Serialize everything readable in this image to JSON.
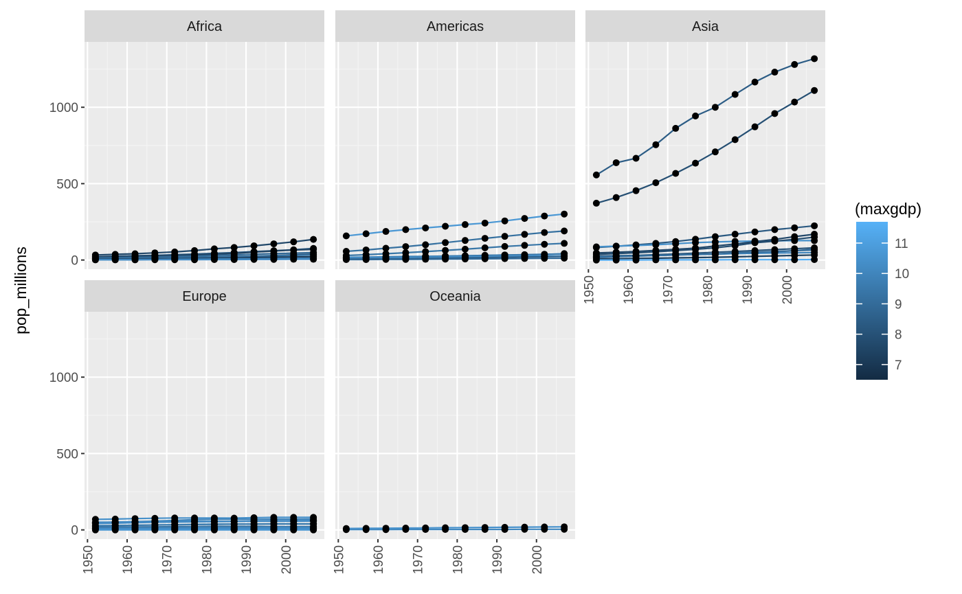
{
  "chart_data": {
    "type": "line",
    "ylabel": "pop_millions",
    "ylim": [
      0,
      1318
    ],
    "xlim": [
      1952,
      2007
    ],
    "x_ticks": [
      1950,
      1960,
      1970,
      1980,
      1990,
      2000
    ],
    "y_ticks": [
      0,
      500,
      1000
    ],
    "x": [
      1952,
      1957,
      1962,
      1967,
      1972,
      1977,
      1982,
      1987,
      1992,
      1997,
      2002,
      2007
    ],
    "legend": {
      "title": "(maxgdp)",
      "placement": "right",
      "ticks": [
        7,
        8,
        9,
        10,
        11
      ],
      "range": [
        6.5,
        11.7
      ],
      "low_color": "#132b43",
      "high_color": "#56b1f7"
    },
    "facets": [
      {
        "label": "Africa",
        "series": [
          {
            "maxgdp": 7.6,
            "values": [
              33,
              37,
              41,
              47,
              53,
              62,
              73,
              82,
              93,
              106,
              119,
              135
            ]
          },
          {
            "maxgdp": 8.4,
            "values": [
              22,
              25,
              28,
              31,
              35,
              39,
              44,
              49,
              55,
              61,
              67,
              76
            ]
          },
          {
            "maxgdp": 7.4,
            "values": [
              20,
              22,
              24,
              27,
              30,
              34,
              38,
              44,
              52,
              59,
              66,
              70
            ]
          },
          {
            "maxgdp": 8.9,
            "values": [
              14,
              16,
              18,
              20,
              23,
              26,
              30,
              34,
              38,
              42,
              45,
              49
            ]
          },
          {
            "maxgdp": 8.2,
            "values": [
              9,
              10,
              12,
              13,
              15,
              17,
              20,
              23,
              26,
              30,
              34,
              39
            ]
          },
          {
            "maxgdp": 9.4,
            "values": [
              8,
              9,
              11,
              12,
              14,
              16,
              18,
              21,
              24,
              27,
              30,
              33
            ]
          },
          {
            "maxgdp": 7.1,
            "values": [
              5,
              6,
              7,
              8,
              9,
              10,
              12,
              14,
              16,
              18,
              20,
              22
            ]
          },
          {
            "maxgdp": 9.8,
            "values": [
              3,
              3,
              4,
              4,
              5,
              6,
              7,
              8,
              9,
              10,
              11,
              12
            ]
          },
          {
            "maxgdp": 10.2,
            "values": [
              1,
              1,
              1,
              2,
              2,
              2,
              3,
              3,
              4,
              4,
              5,
              5
            ]
          }
        ]
      },
      {
        "label": "Americas",
        "series": [
          {
            "maxgdp": 10.7,
            "values": [
              158,
              172,
              187,
              199,
              210,
              221,
              232,
              242,
              256,
              272,
              288,
              301
            ]
          },
          {
            "maxgdp": 9.2,
            "values": [
              57,
              66,
              77,
              88,
              100,
              114,
              128,
              142,
              155,
              168,
              180,
              190
            ]
          },
          {
            "maxgdp": 9.4,
            "values": [
              30,
              35,
              41,
              48,
              55,
              63,
              71,
              80,
              89,
              96,
              103,
              109
            ]
          },
          {
            "maxgdp": 10.4,
            "values": [
              18,
              19,
              21,
              23,
              24,
              26,
              28,
              30,
              33,
              34,
              36,
              42
            ]
          },
          {
            "maxgdp": 9.6,
            "values": [
              14,
              17,
              19,
              21,
              23,
              25,
              27,
              31,
              33,
              35,
              38,
              40
            ]
          },
          {
            "maxgdp": 10.5,
            "values": [
              12,
              13,
              14,
              16,
              17,
              19,
              20,
              21,
              23,
              25,
              26,
              27
            ]
          },
          {
            "maxgdp": 8.6,
            "values": [
              6,
              7,
              8,
              9,
              11,
              12,
              14,
              16,
              18,
              20,
              22,
              24
            ]
          },
          {
            "maxgdp": 9.0,
            "values": [
              3,
              3,
              4,
              4,
              5,
              6,
              7,
              8,
              9,
              10,
              11,
              12
            ]
          }
        ]
      },
      {
        "label": "Asia",
        "series": [
          {
            "maxgdp": 8.4,
            "values": [
              557,
              637,
              666,
              755,
              862,
              943,
              1000,
              1084,
              1165,
              1230,
              1280,
              1318
            ]
          },
          {
            "maxgdp": 7.9,
            "values": [
              372,
              409,
              454,
              506,
              567,
              634,
              708,
              788,
              872,
              959,
              1034,
              1110
            ]
          },
          {
            "maxgdp": 8.3,
            "values": [
              82,
              90,
              99,
              109,
              121,
              136,
              153,
              169,
              184,
              199,
              211,
              224
            ]
          },
          {
            "maxgdp": 10.4,
            "values": [
              86,
              91,
              95,
              100,
              107,
              114,
              118,
              122,
              124,
              125,
              127,
              127
            ]
          },
          {
            "maxgdp": 7.6,
            "values": [
              46,
              51,
              56,
              63,
              70,
              78,
              92,
              105,
              120,
              135,
              153,
              169
            ]
          },
          {
            "maxgdp": 7.8,
            "values": [
              37,
              42,
              47,
              54,
              62,
              70,
              80,
              94,
              113,
              124,
              135,
              150
            ]
          },
          {
            "maxgdp": 8.1,
            "values": [
              26,
              28,
              30,
              35,
              40,
              45,
              51,
              56,
              62,
              68,
              74,
              80
            ]
          },
          {
            "maxgdp": 8.7,
            "values": [
              21,
              24,
              27,
              30,
              33,
              36,
              39,
              43,
              47,
              54,
              61,
              71
            ]
          },
          {
            "maxgdp": 10.0,
            "values": [
              20,
              23,
              26,
              29,
              33,
              36,
              39,
              42,
              44,
              46,
              47,
              49
            ]
          },
          {
            "maxgdp": 9.1,
            "values": [
              17,
              22,
              26,
              30,
              34,
              38,
              40,
              47,
              51,
              56,
              61,
              66
            ]
          },
          {
            "maxgdp": 7.3,
            "values": [
              8,
              9,
              11,
              12,
              14,
              16,
              18,
              21,
              24,
              27,
              30,
              33
            ]
          },
          {
            "maxgdp": 11.6,
            "values": [
              0,
              0,
              0,
              1,
              1,
              1,
              1,
              2,
              2,
              2,
              2,
              3
            ]
          }
        ]
      },
      {
        "label": "Europe",
        "series": [
          {
            "maxgdp": 10.4,
            "values": [
              69,
              71,
              74,
              76,
              78,
              78,
              78,
              77,
              80,
              82,
              82,
              82
            ]
          },
          {
            "maxgdp": 10.0,
            "values": [
              48,
              51,
              54,
              58,
              62,
              67,
              70,
              71,
              69,
              70,
              70,
              71
            ]
          },
          {
            "maxgdp": 10.3,
            "values": [
              42,
              44,
              47,
              50,
              51,
              53,
              54,
              55,
              57,
              58,
              59,
              61
            ]
          },
          {
            "maxgdp": 10.3,
            "values": [
              50,
              51,
              53,
              54,
              56,
              56,
              56,
              57,
              58,
              59,
              60,
              61
            ]
          },
          {
            "maxgdp": 10.2,
            "values": [
              47,
              49,
              51,
              53,
              54,
              56,
              56,
              57,
              57,
              57,
              57,
              58
            ]
          },
          {
            "maxgdp": 10.0,
            "values": [
              28,
              29,
              31,
              32,
              34,
              36,
              38,
              38,
              39,
              40,
              40,
              40
            ]
          },
          {
            "maxgdp": 9.6,
            "values": [
              25,
              28,
              30,
              32,
              33,
              35,
              36,
              38,
              38,
              39,
              39,
              39
            ]
          },
          {
            "maxgdp": 9.3,
            "values": [
              17,
              18,
              19,
              20,
              21,
              22,
              23,
              23,
              23,
              22,
              22,
              22
            ]
          },
          {
            "maxgdp": 10.2,
            "values": [
              10,
              11,
              11,
              12,
              13,
              14,
              14,
              15,
              15,
              16,
              16,
              16
            ]
          },
          {
            "maxgdp": 10.1,
            "values": [
              9,
              9,
              10,
              10,
              10,
              10,
              10,
              10,
              10,
              10,
              10,
              10
            ]
          },
          {
            "maxgdp": 10.5,
            "values": [
              4,
              4,
              4,
              4,
              4,
              4,
              4,
              4,
              4,
              4,
              5,
              5
            ]
          },
          {
            "maxgdp": 10.6,
            "values": [
              0,
              0,
              0,
              0,
              0,
              0,
              0,
              0,
              0,
              0,
              0,
              0
            ]
          }
        ]
      },
      {
        "label": "Oceania",
        "series": [
          {
            "maxgdp": 10.5,
            "values": [
              9,
              10,
              11,
              12,
              13,
              14,
              15,
              16,
              17,
              18,
              19,
              20
            ]
          },
          {
            "maxgdp": 10.1,
            "values": [
              2,
              2,
              2,
              3,
              3,
              3,
              3,
              3,
              3,
              4,
              4,
              4
            ]
          }
        ]
      }
    ]
  }
}
